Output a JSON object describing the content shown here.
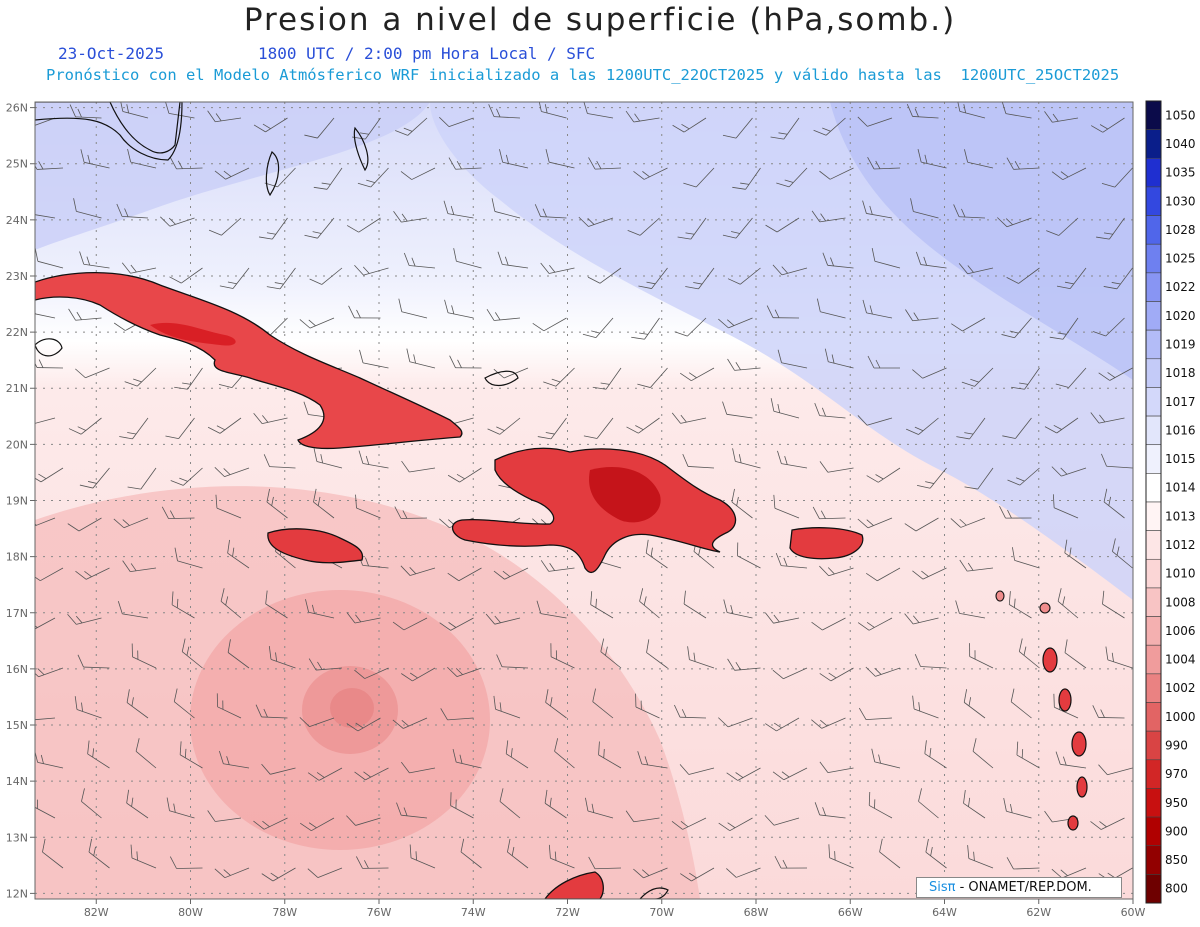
{
  "title": "Presion a nivel de superficie (hPa,somb.)",
  "date": "23-Oct-2025",
  "time_line": "1800 UTC / 2:00 pm Hora Local / SFC",
  "model_line": "Pronóstico con el Modelo Atmósferico WRF inicializado a las 1200UTC_22OCT2025 y válido hasta las  1200UTC_25OCT2025",
  "credit": {
    "brand": "Sisπ",
    "text": " - ONAMET/REP.DOM."
  },
  "map": {
    "lon_range": [
      -83.3,
      -60
    ],
    "lat_range": [
      11.9,
      26.1
    ],
    "lon_labels": [
      "82W",
      "80W",
      "78W",
      "76W",
      "74W",
      "72W",
      "70W",
      "68W",
      "66W",
      "64W",
      "62W",
      "60W"
    ],
    "lat_labels": [
      "12N",
      "13N",
      "14N",
      "15N",
      "16N",
      "17N",
      "18N",
      "19N",
      "20N",
      "21N",
      "22N",
      "23N",
      "24N",
      "25N",
      "26N"
    ]
  },
  "colorbar": {
    "levels": [
      "1050",
      "1040",
      "1035",
      "1030",
      "1028",
      "1025",
      "1022",
      "1020",
      "1019",
      "1018",
      "1017",
      "1016",
      "1015",
      "1014",
      "1013",
      "1012",
      "1010",
      "1008",
      "1006",
      "1004",
      "1002",
      "1000",
      "990",
      "970",
      "950",
      "900",
      "850",
      "800"
    ],
    "colors": [
      "#0b0b4a",
      "#0a1e8a",
      "#1f2fd0",
      "#3348e0",
      "#5066ea",
      "#6e80f0",
      "#8895f3",
      "#a0abf6",
      "#b3bcf7",
      "#c4cbf8",
      "#d3d8fa",
      "#e2e6fb",
      "#eff1fd",
      "#ffffff",
      "#fff4f4",
      "#fde6e6",
      "#fbd6d6",
      "#f8c4c4",
      "#f4b0b0",
      "#f09c9c",
      "#ea8282",
      "#e26464",
      "#d94444",
      "#d22626",
      "#c81010",
      "#b00000",
      "#920000",
      "#6e0000"
    ]
  }
}
